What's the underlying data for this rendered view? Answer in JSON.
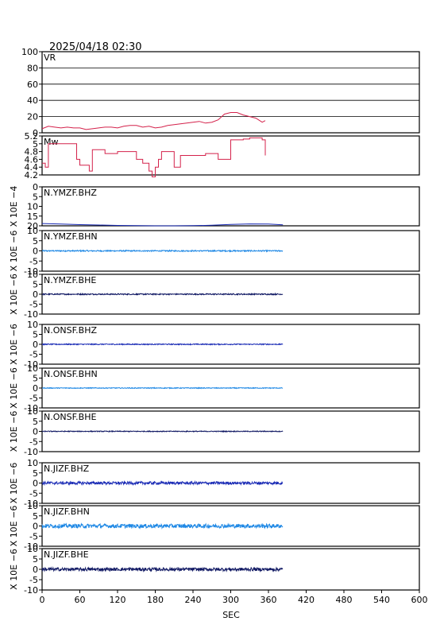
{
  "header": {
    "datetime": "2025/04/18  02:30"
  },
  "x_axis": {
    "label": "SEC",
    "range": [
      0,
      600
    ],
    "ticks": [
      0,
      60,
      120,
      180,
      240,
      300,
      360,
      420,
      480,
      540,
      600
    ],
    "data_end_sec": 383
  },
  "colors": {
    "vr": "#d4224b",
    "mw": "#d4224b",
    "bhz": "#1a2bb5",
    "bhn": "#1e88e5",
    "bhe": "#101863",
    "frame": "#000000"
  },
  "chart_data": [
    {
      "type": "line",
      "title": "VR",
      "ylim": [
        0,
        100
      ],
      "yticks": [
        0,
        20,
        40,
        60,
        80,
        100
      ],
      "grid": true,
      "x": [
        0,
        10,
        20,
        30,
        40,
        50,
        60,
        70,
        80,
        90,
        100,
        110,
        120,
        130,
        140,
        150,
        160,
        170,
        180,
        190,
        200,
        210,
        220,
        230,
        240,
        250,
        260,
        270,
        280,
        290,
        300,
        310,
        320,
        330,
        340,
        350,
        355
      ],
      "values": [
        5,
        8,
        7,
        6,
        7,
        6,
        6,
        4,
        5,
        6,
        7,
        7,
        6,
        8,
        9,
        9,
        7,
        8,
        6,
        7,
        9,
        10,
        11,
        12,
        13,
        14,
        12,
        13,
        16,
        23,
        25,
        25,
        22,
        20,
        18,
        13,
        15
      ]
    },
    {
      "type": "line",
      "title": "Mw",
      "ylim": [
        4.2,
        5.2
      ],
      "yticks": [
        4.2,
        4.4,
        4.6,
        4.8,
        5.0,
        5.2
      ],
      "grid": false,
      "x": [
        0,
        5,
        10,
        20,
        40,
        55,
        60,
        70,
        75,
        80,
        90,
        100,
        120,
        140,
        150,
        160,
        170,
        175,
        180,
        185,
        190,
        200,
        210,
        220,
        230,
        240,
        250,
        260,
        280,
        290,
        300,
        310,
        320,
        330,
        340,
        350,
        355
      ],
      "values": [
        4.5,
        4.4,
        5.0,
        5.0,
        5.0,
        4.6,
        4.45,
        4.45,
        4.3,
        4.85,
        4.85,
        4.75,
        4.8,
        4.8,
        4.6,
        4.5,
        4.3,
        4.15,
        4.4,
        4.6,
        4.8,
        4.8,
        4.4,
        4.7,
        4.7,
        4.7,
        4.7,
        4.75,
        4.6,
        4.6,
        5.1,
        5.1,
        5.12,
        5.15,
        5.15,
        5.1,
        4.7
      ]
    },
    {
      "type": "line",
      "title": "N.YMZF.BHZ",
      "ylabel": "X 10E −4",
      "ylim": [
        -20,
        0
      ],
      "yticks": [
        0,
        -5,
        -10,
        -15,
        -20
      ],
      "ytick_labels": [
        "0",
        "5",
        "10",
        "15",
        "20"
      ],
      "x": [
        0,
        30,
        60,
        90,
        120,
        150,
        180,
        210,
        240,
        270,
        300,
        330,
        360,
        383
      ],
      "values": [
        -18.8,
        -19.1,
        -19.4,
        -19.6,
        -19.8,
        -19.9,
        -20.0,
        -20.0,
        -19.9,
        -19.7,
        -19.3,
        -19.0,
        -19.1,
        -19.5
      ]
    },
    {
      "type": "line",
      "title": "N.YMZF.BHN",
      "ylabel": "X 10E −6",
      "ylim": [
        -10,
        10
      ],
      "yticks": [
        10,
        5,
        0,
        -5,
        -10
      ],
      "noise_amplitude": 0.3,
      "x_range": [
        0,
        383
      ],
      "values": [
        0
      ]
    },
    {
      "type": "line",
      "title": "N.YMZF.BHE",
      "ylabel": "X 10E −6",
      "ylim": [
        -10,
        10
      ],
      "yticks": [
        10,
        5,
        0,
        -5,
        -10
      ],
      "noise_amplitude": 0.3,
      "x_range": [
        0,
        383
      ],
      "values": [
        0
      ]
    },
    {
      "type": "line",
      "title": "N.ONSF.BHZ",
      "ylabel": "X 10E −6",
      "ylim": [
        -10,
        10
      ],
      "yticks": [
        10,
        5,
        0,
        -5,
        -10
      ],
      "noise_amplitude": 0.25,
      "x_range": [
        0,
        383
      ],
      "values": [
        0
      ]
    },
    {
      "type": "line",
      "title": "N.ONSF.BHN",
      "ylabel": "X 10E −6",
      "ylim": [
        -10,
        10
      ],
      "yticks": [
        10,
        5,
        0,
        -5,
        -10
      ],
      "noise_amplitude": 0.2,
      "x_range": [
        0,
        383
      ],
      "values": [
        0
      ]
    },
    {
      "type": "line",
      "title": "N.ONSF.BHE",
      "ylabel": "X 10E −6",
      "ylim": [
        -10,
        10
      ],
      "yticks": [
        10,
        5,
        0,
        -5,
        -10
      ],
      "noise_amplitude": 0.2,
      "x_range": [
        0,
        383
      ],
      "values": [
        0
      ]
    },
    {
      "type": "line",
      "title": "N.JIZF.BHZ",
      "ylabel": "X 10E −6",
      "ylim": [
        -10,
        10
      ],
      "yticks": [
        10,
        5,
        0,
        -5,
        -10
      ],
      "noise_amplitude": 0.7,
      "x_range": [
        0,
        383
      ],
      "values": [
        0
      ]
    },
    {
      "type": "line",
      "title": "N.JIZF.BHN",
      "ylabel": "X 10E −6",
      "ylim": [
        -10,
        10
      ],
      "yticks": [
        10,
        5,
        0,
        -5,
        -10
      ],
      "noise_amplitude": 1.0,
      "x_range": [
        0,
        383
      ],
      "values": [
        0
      ]
    },
    {
      "type": "line",
      "title": "N.JIZF.BHE",
      "ylabel": "X 10E −6",
      "ylim": [
        -10,
        10
      ],
      "yticks": [
        10,
        5,
        0,
        -5,
        -10
      ],
      "noise_amplitude": 0.8,
      "x_range": [
        0,
        383
      ],
      "values": [
        0
      ]
    }
  ]
}
